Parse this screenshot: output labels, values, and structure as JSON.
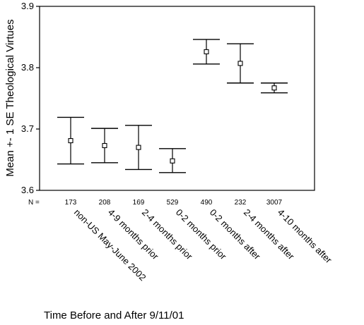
{
  "chart_data": {
    "type": "errorbar",
    "title": "",
    "ylabel": "Mean +- 1 SE Theological Virtues",
    "xlabel": "Time Before and After 9/11/01",
    "ylim": [
      3.6,
      3.9
    ],
    "yticks": [
      "3.6",
      "3.7",
      "3.8",
      "3.9"
    ],
    "n_label": "N =",
    "grid": false,
    "legend": "none",
    "categories": [
      "non-US May-June 2002",
      "4-9 months prior",
      "2-4 months prior",
      "0-2 months prior",
      "0-2 months after",
      "2-4 months after",
      "4-10 months after"
    ],
    "n": [
      "173",
      "208",
      "169",
      "529",
      "490",
      "232",
      "3007"
    ],
    "mean": [
      3.681,
      3.673,
      3.67,
      3.648,
      3.826,
      3.807,
      3.767
    ],
    "upper": [
      3.719,
      3.701,
      3.706,
      3.668,
      3.846,
      3.839,
      3.775
    ],
    "lower": [
      3.643,
      3.645,
      3.634,
      3.629,
      3.806,
      3.775,
      3.759
    ]
  }
}
